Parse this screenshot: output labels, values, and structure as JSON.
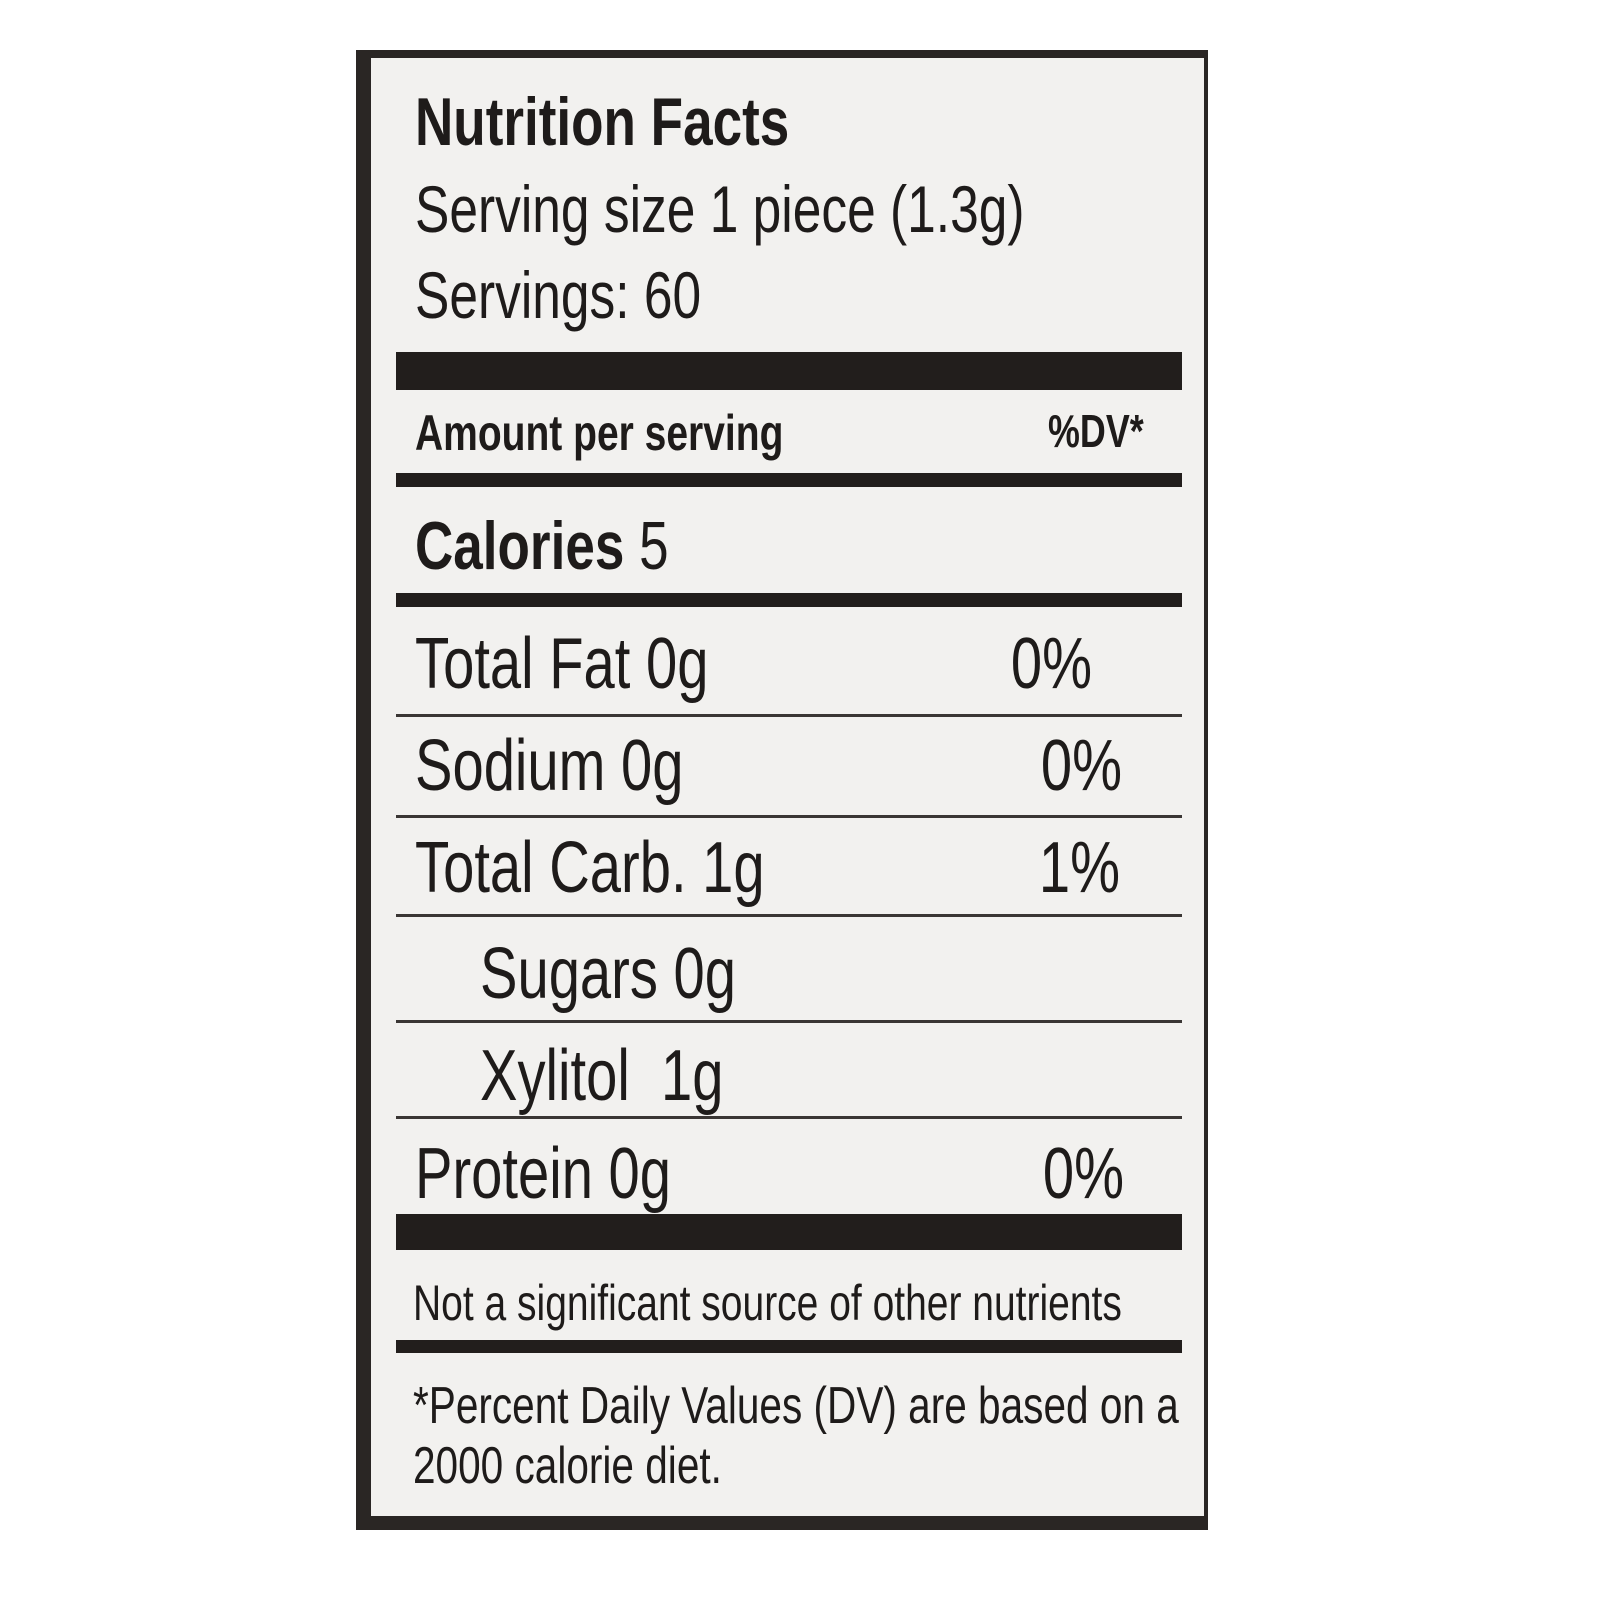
{
  "title": "Nutrition Facts",
  "serving_size": "Serving size 1 piece (1.3g)",
  "servings": "Servings: 60",
  "amount_header": "Amount per serving",
  "dv_header": "%DV*",
  "calories": {
    "label": "Calories",
    "value": "5"
  },
  "nutrients": [
    {
      "label": "Total Fat 0g",
      "dv": "0%"
    },
    {
      "label": "Sodium 0g",
      "dv": "0%"
    },
    {
      "label": "Total Carb. 1g",
      "dv": "1%"
    },
    {
      "label": "Sugars 0g",
      "dv": ""
    },
    {
      "label": "Xylitol  1g",
      "dv": ""
    },
    {
      "label": "Protein 0g",
      "dv": "0%"
    }
  ],
  "note": "Not a significant source of other nutrients",
  "footnote_line1": "*Percent Daily Values (DV) are based on a",
  "footnote_line2": "2000 calorie diet."
}
